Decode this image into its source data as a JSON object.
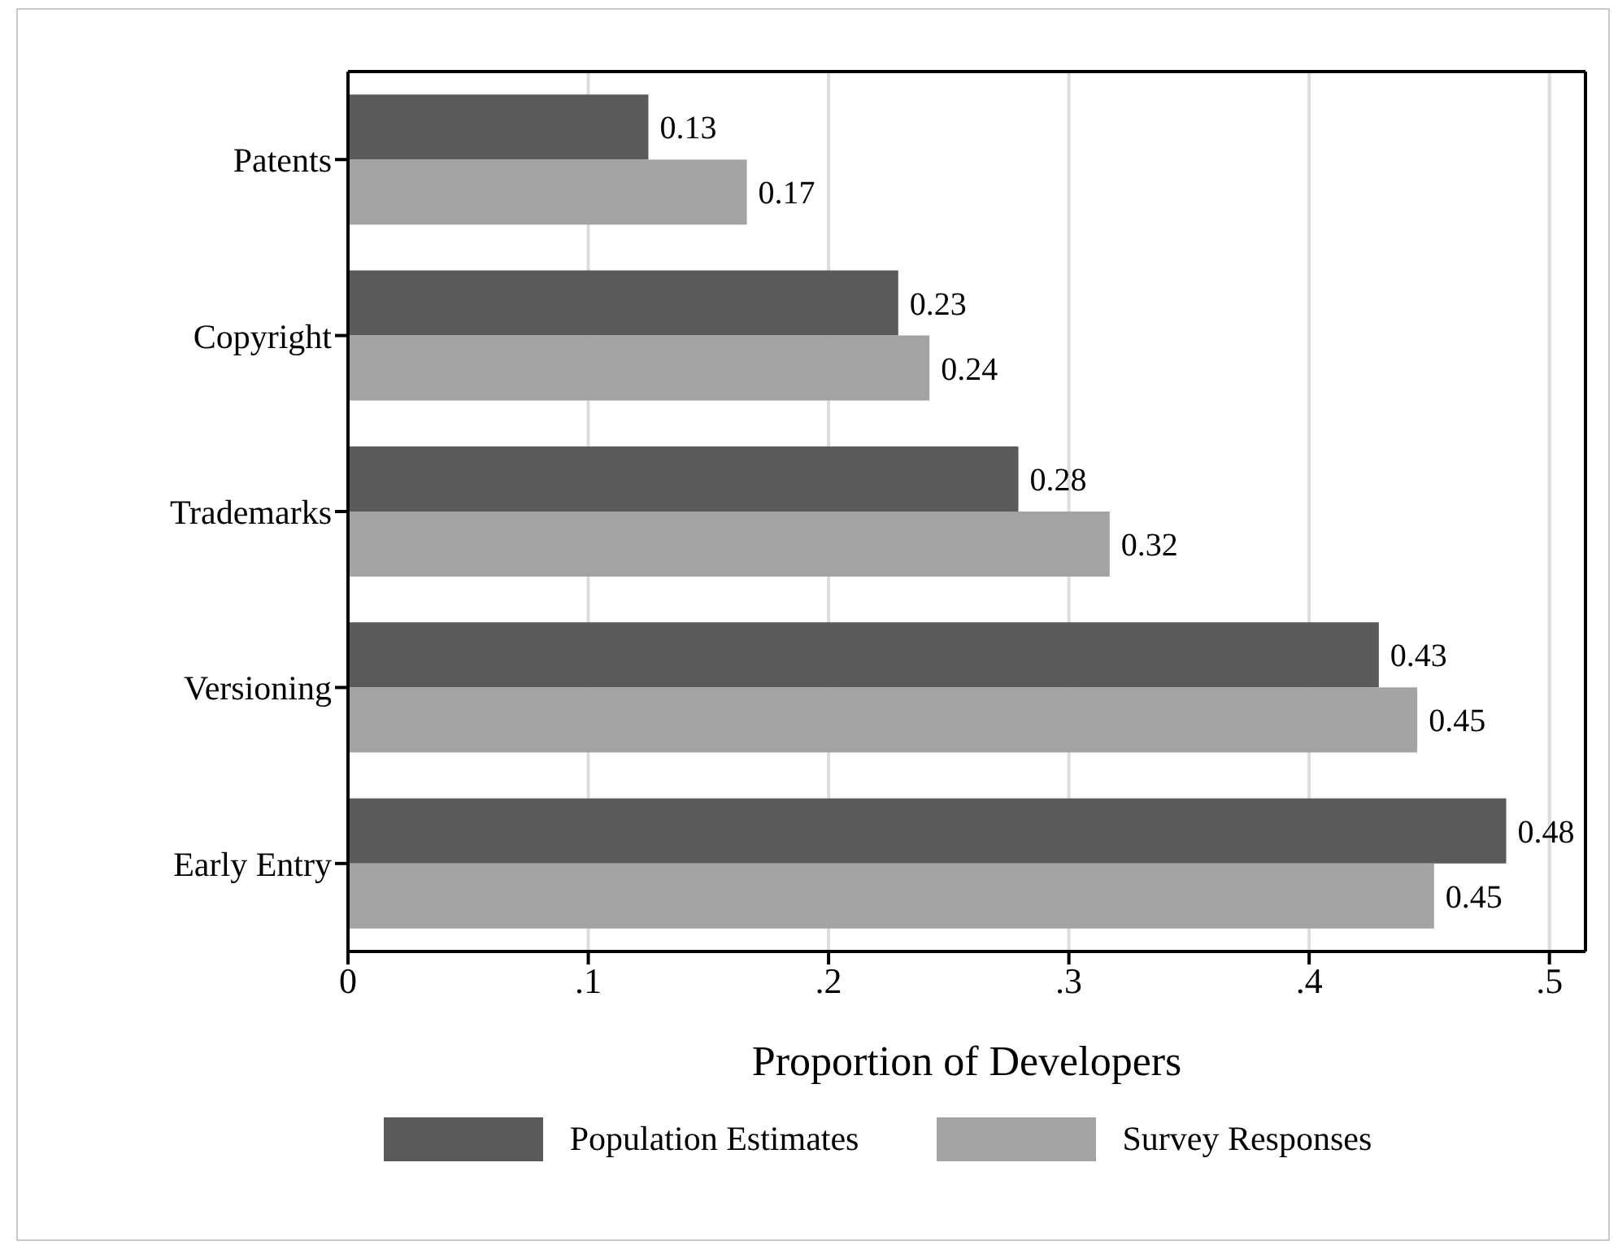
{
  "chart_data": {
    "type": "bar",
    "orientation": "horizontal",
    "xlabel": "Proportion of Developers",
    "categories": [
      "Patents",
      "Copyright",
      "Trademarks",
      "Versioning",
      "Early Entry"
    ],
    "series": [
      {
        "name": "Population Estimates",
        "color": "#5a5a5a",
        "values": [
          0.125,
          0.229,
          0.279,
          0.429,
          0.482
        ],
        "value_labels": [
          "0.13",
          "0.23",
          "0.28",
          "0.43",
          "0.48"
        ]
      },
      {
        "name": "Survey Responses",
        "color": "#a3a3a3",
        "values": [
          0.166,
          0.242,
          0.317,
          0.445,
          0.452
        ],
        "value_labels": [
          "0.17",
          "0.24",
          "0.32",
          "0.45",
          "0.45"
        ]
      }
    ],
    "xlim": [
      0,
      0.515
    ],
    "xticks": [
      0,
      {
        "value": 0.1,
        "label": ".1"
      },
      {
        "value": 0.2,
        "label": ".2"
      },
      {
        "value": 0.3,
        "label": ".3"
      },
      {
        "value": 0.4,
        "label": ".4"
      },
      {
        "value": 0.5,
        "label": ".5"
      }
    ],
    "grid": "x",
    "legend": "bottom"
  }
}
